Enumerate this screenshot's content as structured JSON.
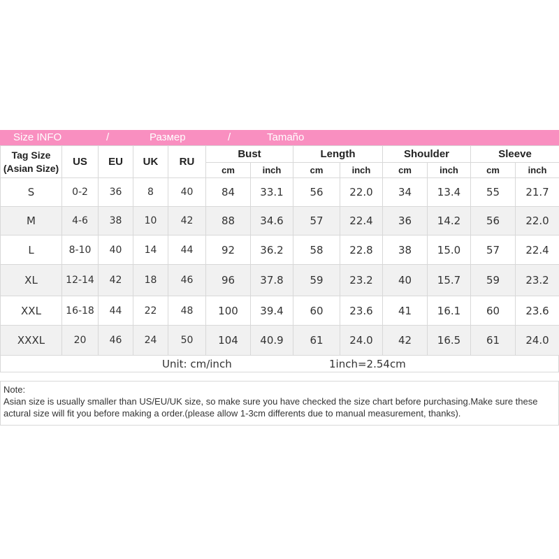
{
  "title_bar": {
    "en": "Size INFO",
    "sep1": "/",
    "ru": "Размер",
    "sep2": "/",
    "es": "Tamaño"
  },
  "header": {
    "tag_size_line1": "Tag Size",
    "tag_size_line2": "(Asian Size)",
    "us": "US",
    "eu": "EU",
    "uk": "UK",
    "ru": "RU",
    "bust": "Bust",
    "length": "Length",
    "shoulder": "Shoulder",
    "sleeve": "Sleeve",
    "cm": "cm",
    "inch": "inch"
  },
  "rows": [
    {
      "tag": "S",
      "us": "0-2",
      "eu": "36",
      "uk": "8",
      "ru": "40",
      "bust_cm": "84",
      "bust_in": "33.1",
      "len_cm": "56",
      "len_in": "22.0",
      "sh_cm": "34",
      "sh_in": "13.4",
      "sl_cm": "55",
      "sl_in": "21.7"
    },
    {
      "tag": "M",
      "us": "4-6",
      "eu": "38",
      "uk": "10",
      "ru": "42",
      "bust_cm": "88",
      "bust_in": "34.6",
      "len_cm": "57",
      "len_in": "22.4",
      "sh_cm": "36",
      "sh_in": "14.2",
      "sl_cm": "56",
      "sl_in": "22.0"
    },
    {
      "tag": "L",
      "us": "8-10",
      "eu": "40",
      "uk": "14",
      "ru": "44",
      "bust_cm": "92",
      "bust_in": "36.2",
      "len_cm": "58",
      "len_in": "22.8",
      "sh_cm": "38",
      "sh_in": "15.0",
      "sl_cm": "57",
      "sl_in": "22.4"
    },
    {
      "tag": "XL",
      "us": "12-14",
      "eu": "42",
      "uk": "18",
      "ru": "46",
      "bust_cm": "96",
      "bust_in": "37.8",
      "len_cm": "59",
      "len_in": "23.2",
      "sh_cm": "40",
      "sh_in": "15.7",
      "sl_cm": "59",
      "sl_in": "23.2"
    },
    {
      "tag": "XXL",
      "us": "16-18",
      "eu": "44",
      "uk": "22",
      "ru": "48",
      "bust_cm": "100",
      "bust_in": "39.4",
      "len_cm": "60",
      "len_in": "23.6",
      "sh_cm": "41",
      "sh_in": "16.1",
      "sl_cm": "60",
      "sl_in": "23.6"
    },
    {
      "tag": "XXXL",
      "us": "20",
      "eu": "46",
      "uk": "24",
      "ru": "50",
      "bust_cm": "104",
      "bust_in": "40.9",
      "len_cm": "61",
      "len_in": "24.0",
      "sh_cm": "42",
      "sh_in": "16.5",
      "sl_cm": "61",
      "sl_in": "24.0"
    }
  ],
  "unit_row": {
    "unit": "Unit: cm/inch",
    "conversion": "1inch=2.54cm"
  },
  "note": {
    "label": "Note:",
    "text": "Asian size is usually smaller than US/EU/UK size, so make sure you have checked the size chart before purchasing.Make sure these actural size will fit you before making a order.(please allow 1-3cm differents due to manual measurement, thanks)."
  },
  "colors": {
    "title_bar_bg": "#f98fc0",
    "title_bar_text": "#ffffff",
    "row_alt_bg": "#f1f1f1",
    "border": "#d8d8d8"
  }
}
